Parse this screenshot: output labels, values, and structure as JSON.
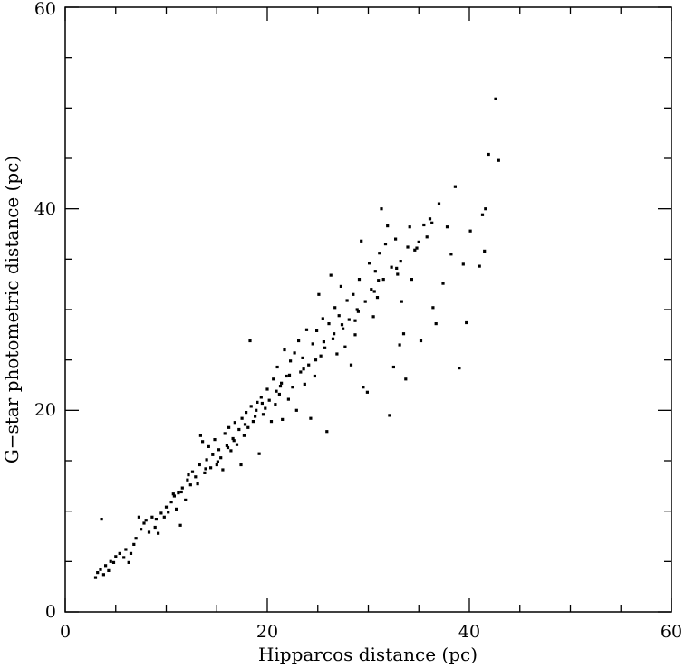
{
  "chart_data": {
    "type": "scatter",
    "xlabel": "Hipparcos distance (pc)",
    "ylabel": "G−star photometric distance (pc)",
    "xlim": [
      0,
      60
    ],
    "ylim": [
      0,
      60
    ],
    "x_ticks": [
      "0",
      "20",
      "40",
      "60"
    ],
    "y_ticks": [
      "0",
      "20",
      "40",
      "60"
    ],
    "grid": false,
    "points": [
      [
        3.0,
        3.4
      ],
      [
        3.2,
        3.9
      ],
      [
        3.5,
        4.2
      ],
      [
        3.8,
        3.7
      ],
      [
        4.0,
        4.6
      ],
      [
        4.3,
        4.1
      ],
      [
        3.6,
        9.2
      ],
      [
        4.5,
        5.0
      ],
      [
        4.8,
        4.9
      ],
      [
        5.0,
        5.5
      ],
      [
        5.4,
        5.8
      ],
      [
        5.8,
        5.4
      ],
      [
        6.0,
        6.2
      ],
      [
        6.3,
        4.9
      ],
      [
        6.5,
        5.8
      ],
      [
        6.8,
        6.7
      ],
      [
        7.0,
        7.3
      ],
      [
        7.3,
        9.4
      ],
      [
        7.5,
        8.2
      ],
      [
        7.8,
        8.8
      ],
      [
        8.0,
        9.1
      ],
      [
        8.3,
        7.9
      ],
      [
        8.6,
        9.4
      ],
      [
        8.9,
        8.4
      ],
      [
        9.2,
        7.8
      ],
      [
        9.5,
        9.8
      ],
      [
        9.8,
        9.4
      ],
      [
        10.0,
        10.4
      ],
      [
        10.2,
        9.9
      ],
      [
        10.5,
        10.9
      ],
      [
        10.8,
        11.5
      ],
      [
        11.0,
        10.2
      ],
      [
        11.2,
        11.8
      ],
      [
        11.4,
        8.6
      ],
      [
        11.6,
        12.3
      ],
      [
        11.9,
        11.1
      ],
      [
        12.1,
        13.1
      ],
      [
        12.4,
        12.6
      ],
      [
        12.6,
        13.9
      ],
      [
        12.9,
        13.4
      ],
      [
        13.1,
        12.7
      ],
      [
        13.3,
        14.6
      ],
      [
        13.4,
        17.5
      ],
      [
        13.6,
        16.9
      ],
      [
        13.8,
        13.8
      ],
      [
        14.0,
        15.1
      ],
      [
        14.2,
        16.4
      ],
      [
        14.4,
        14.3
      ],
      [
        14.6,
        15.6
      ],
      [
        14.8,
        17.1
      ],
      [
        15.0,
        14.6
      ],
      [
        15.2,
        16.1
      ],
      [
        15.4,
        15.3
      ],
      [
        15.6,
        14.1
      ],
      [
        15.8,
        17.7
      ],
      [
        16.0,
        16.5
      ],
      [
        16.2,
        18.3
      ],
      [
        16.4,
        16.0
      ],
      [
        16.6,
        17.2
      ],
      [
        16.8,
        18.8
      ],
      [
        17.0,
        16.6
      ],
      [
        17.2,
        18.1
      ],
      [
        17.4,
        14.6
      ],
      [
        17.5,
        19.2
      ],
      [
        17.7,
        17.5
      ],
      [
        17.9,
        19.8
      ],
      [
        18.1,
        18.3
      ],
      [
        18.3,
        26.9
      ],
      [
        18.4,
        20.4
      ],
      [
        18.6,
        18.9
      ],
      [
        18.8,
        19.4
      ],
      [
        19.0,
        20.8
      ],
      [
        19.2,
        15.7
      ],
      [
        19.4,
        21.3
      ],
      [
        19.6,
        19.6
      ],
      [
        19.8,
        20.2
      ],
      [
        20.0,
        22.1
      ],
      [
        20.2,
        21.0
      ],
      [
        20.4,
        18.9
      ],
      [
        20.6,
        23.1
      ],
      [
        20.8,
        20.6
      ],
      [
        21.0,
        24.3
      ],
      [
        21.2,
        21.6
      ],
      [
        21.4,
        22.7
      ],
      [
        21.5,
        19.1
      ],
      [
        21.7,
        26.0
      ],
      [
        21.9,
        23.4
      ],
      [
        22.1,
        21.1
      ],
      [
        22.3,
        24.9
      ],
      [
        22.5,
        22.3
      ],
      [
        22.7,
        25.7
      ],
      [
        22.9,
        20.0
      ],
      [
        23.1,
        26.9
      ],
      [
        23.3,
        23.8
      ],
      [
        23.5,
        25.2
      ],
      [
        23.7,
        22.6
      ],
      [
        23.9,
        28.0
      ],
      [
        24.1,
        24.5
      ],
      [
        24.3,
        19.2
      ],
      [
        24.5,
        26.6
      ],
      [
        24.7,
        23.4
      ],
      [
        24.9,
        27.9
      ],
      [
        25.1,
        31.5
      ],
      [
        25.3,
        25.4
      ],
      [
        25.5,
        29.1
      ],
      [
        25.7,
        26.2
      ],
      [
        25.9,
        17.9
      ],
      [
        26.1,
        28.6
      ],
      [
        26.3,
        33.4
      ],
      [
        26.5,
        27.1
      ],
      [
        26.7,
        30.2
      ],
      [
        26.9,
        25.6
      ],
      [
        27.1,
        29.4
      ],
      [
        27.3,
        32.3
      ],
      [
        27.5,
        28.1
      ],
      [
        27.7,
        26.3
      ],
      [
        27.9,
        30.9
      ],
      [
        28.1,
        29.0
      ],
      [
        28.3,
        24.5
      ],
      [
        28.5,
        31.5
      ],
      [
        28.7,
        27.5
      ],
      [
        28.9,
        30.0
      ],
      [
        29.1,
        33.0
      ],
      [
        29.3,
        36.8
      ],
      [
        29.5,
        22.3
      ],
      [
        29.7,
        30.8
      ],
      [
        29.9,
        21.8
      ],
      [
        30.1,
        34.6
      ],
      [
        30.3,
        32.0
      ],
      [
        30.5,
        29.3
      ],
      [
        30.7,
        33.8
      ],
      [
        30.9,
        31.2
      ],
      [
        31.1,
        35.6
      ],
      [
        31.3,
        40.0
      ],
      [
        31.5,
        33.0
      ],
      [
        31.7,
        36.5
      ],
      [
        31.9,
        38.3
      ],
      [
        32.1,
        19.5
      ],
      [
        32.3,
        34.2
      ],
      [
        32.5,
        24.3
      ],
      [
        32.7,
        37.0
      ],
      [
        32.9,
        33.5
      ],
      [
        33.1,
        26.5
      ],
      [
        33.3,
        30.8
      ],
      [
        33.5,
        27.6
      ],
      [
        33.7,
        23.1
      ],
      [
        33.9,
        36.2
      ],
      [
        34.1,
        38.2
      ],
      [
        34.3,
        33.0
      ],
      [
        34.8,
        36.1
      ],
      [
        35.2,
        26.9
      ],
      [
        35.5,
        38.4
      ],
      [
        35.8,
        37.2
      ],
      [
        36.1,
        39.0
      ],
      [
        36.4,
        30.2
      ],
      [
        36.7,
        28.6
      ],
      [
        37.0,
        40.5
      ],
      [
        37.4,
        32.6
      ],
      [
        37.8,
        38.2
      ],
      [
        38.2,
        35.5
      ],
      [
        38.6,
        42.2
      ],
      [
        39.0,
        24.2
      ],
      [
        39.4,
        34.5
      ],
      [
        39.7,
        28.7
      ],
      [
        40.1,
        37.8
      ],
      [
        41.0,
        34.3
      ],
      [
        41.3,
        39.4
      ],
      [
        41.6,
        40.0
      ],
      [
        41.5,
        35.8
      ],
      [
        41.9,
        45.4
      ],
      [
        42.6,
        50.9
      ],
      [
        42.9,
        44.8
      ],
      [
        10.7,
        11.7
      ],
      [
        12.2,
        13.6
      ],
      [
        15.1,
        14.9
      ],
      [
        16.7,
        17.0
      ],
      [
        18.9,
        20.0
      ],
      [
        20.9,
        21.9
      ],
      [
        22.2,
        23.5
      ],
      [
        24.8,
        25.0
      ],
      [
        26.6,
        27.6
      ],
      [
        28.7,
        28.9
      ],
      [
        30.6,
        31.8
      ],
      [
        33.2,
        34.8
      ],
      [
        35.0,
        36.7
      ],
      [
        36.3,
        38.6
      ],
      [
        9.0,
        9.2
      ],
      [
        11.5,
        11.9
      ],
      [
        13.9,
        14.2
      ],
      [
        16.1,
        16.3
      ],
      [
        17.8,
        18.6
      ],
      [
        19.5,
        20.7
      ],
      [
        21.3,
        22.4
      ],
      [
        23.6,
        24.1
      ],
      [
        25.6,
        26.8
      ],
      [
        27.4,
        28.5
      ],
      [
        29.0,
        29.8
      ],
      [
        31.0,
        32.9
      ],
      [
        32.8,
        34.1
      ],
      [
        34.6,
        35.9
      ]
    ]
  }
}
